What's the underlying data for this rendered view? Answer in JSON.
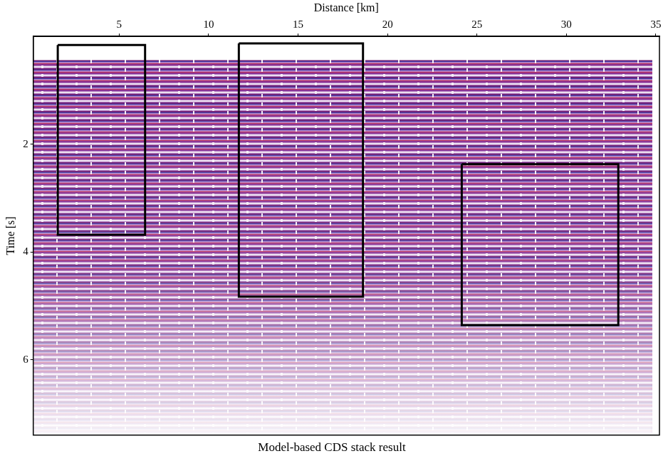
{
  "chart_data": {
    "type": "section",
    "title": "Model-based CDS stack result",
    "x_label": "Distance [km]",
    "y_label": "Time [s]",
    "xlim": [
      0.2,
      35.2
    ],
    "ylim": [
      0,
      7.4
    ],
    "xticks": [
      5,
      10,
      15,
      20,
      25,
      30,
      35
    ],
    "yticks": [
      2,
      4,
      6
    ],
    "grid": false,
    "section": {
      "distance": [
        0.2,
        34.8
      ],
      "time": [
        0.44,
        7.4
      ]
    },
    "boxes": {
      "color": "#000000",
      "distance": [
        [
          1.57,
          6.45
        ],
        [
          11.69,
          18.63
        ],
        [
          24.15,
          32.9
        ]
      ],
      "time": [
        [
          0.16,
          3.68
        ],
        [
          0.13,
          4.83
        ],
        [
          2.37,
          5.36
        ]
      ]
    }
  }
}
